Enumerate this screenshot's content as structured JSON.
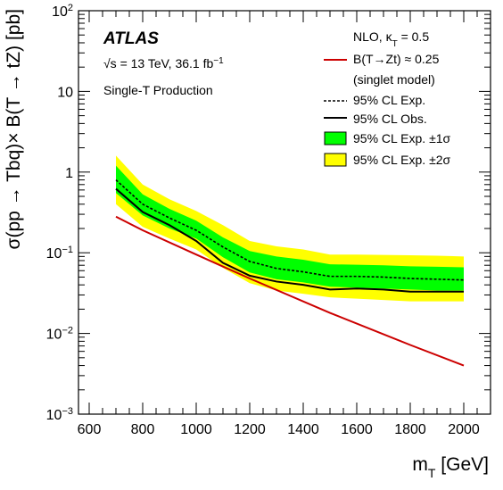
{
  "chart_data": {
    "type": "line",
    "scale": {
      "x": "linear",
      "y": "log"
    },
    "xlim": [
      560,
      2100
    ],
    "ylim": [
      0.001,
      100
    ],
    "xlabel": {
      "main": "m",
      "sub": "T",
      "unit": " [GeV]"
    },
    "ylabel": "σ(pp → Tbq)× B(T → tZ) [pb]",
    "x_ticks": [
      600,
      800,
      1000,
      1200,
      1400,
      1600,
      1800,
      2000
    ],
    "x_tick_labels": [
      "600",
      "800",
      "1000",
      "1200",
      "1400",
      "1600",
      "1800",
      "2000"
    ],
    "y_ticks": [
      {
        "value": 0.001,
        "base": "10",
        "exp": "−3"
      },
      {
        "value": 0.01,
        "base": "10",
        "exp": "−2"
      },
      {
        "value": 0.1,
        "base": "10",
        "exp": "−1"
      },
      {
        "value": 1,
        "base": "1",
        "exp": ""
      },
      {
        "value": 10,
        "base": "10",
        "exp": ""
      },
      {
        "value": 100,
        "base": "10",
        "exp": "2"
      }
    ],
    "x": [
      700,
      800,
      900,
      1000,
      1100,
      1200,
      1300,
      1400,
      1500,
      1600,
      1700,
      1800,
      1900,
      2000
    ],
    "series": [
      {
        "name": "95% CL Exp. ±2σ",
        "kind": "band",
        "color": "#ffff00",
        "upper": [
          1.6,
          0.7,
          0.46,
          0.33,
          0.22,
          0.14,
          0.12,
          0.11,
          0.095,
          0.095,
          0.094,
          0.093,
          0.092,
          0.09
        ],
        "lower": [
          0.4,
          0.21,
          0.15,
          0.11,
          0.065,
          0.042,
          0.034,
          0.031,
          0.028,
          0.027,
          0.026,
          0.025,
          0.025,
          0.025
        ]
      },
      {
        "name": "95% CL Exp. ±1σ",
        "kind": "band",
        "color": "#00ff00",
        "upper": [
          1.2,
          0.53,
          0.35,
          0.25,
          0.155,
          0.105,
          0.09,
          0.082,
          0.072,
          0.071,
          0.07,
          0.068,
          0.067,
          0.066
        ],
        "lower": [
          0.55,
          0.29,
          0.2,
          0.15,
          0.088,
          0.057,
          0.047,
          0.043,
          0.038,
          0.037,
          0.036,
          0.035,
          0.034,
          0.034
        ]
      },
      {
        "name": "95% CL Exp.",
        "kind": "line",
        "style": "dashed",
        "color": "#000000",
        "values": [
          0.8,
          0.4,
          0.27,
          0.19,
          0.118,
          0.078,
          0.064,
          0.058,
          0.051,
          0.051,
          0.05,
          0.048,
          0.047,
          0.046
        ]
      },
      {
        "name": "95% CL Obs.",
        "kind": "line",
        "style": "solid",
        "color": "#000000",
        "values": [
          0.62,
          0.32,
          0.22,
          0.14,
          0.075,
          0.052,
          0.044,
          0.04,
          0.035,
          0.036,
          0.035,
          0.033,
          0.033,
          0.033
        ]
      },
      {
        "name": "B(T→Zt) ≈ 0.25",
        "kind": "line",
        "style": "solid",
        "color": "#cc0000",
        "x": [
          700,
          800,
          1000,
          1200,
          1500,
          1800,
          2000
        ],
        "values": [
          0.28,
          0.19,
          0.095,
          0.048,
          0.018,
          0.0072,
          0.004
        ]
      }
    ],
    "annotations": {
      "experiment": "ATLAS",
      "energy_prefix": "√s = 13 TeV, 36.1 fb",
      "energy_sup": "−1",
      "process": "Single-T Production"
    },
    "legend": {
      "placement": "top-right",
      "header": {
        "main": "NLO, κ",
        "sub": "T",
        "tail": " = 0.5"
      },
      "entries": [
        {
          "label": "B(T→Zt) ≈ 0.25",
          "marker": "line-red"
        },
        {
          "label": "(singlet model)",
          "marker": "none"
        },
        {
          "label": "95% CL Exp.",
          "marker": "line-dashed"
        },
        {
          "label": "95% CL Obs.",
          "marker": "line-solid"
        },
        {
          "label": "95% CL Exp. ±1σ",
          "marker": "box-green"
        },
        {
          "label": "95% CL Exp. ±2σ",
          "marker": "box-yellow"
        }
      ]
    },
    "grid": false
  }
}
